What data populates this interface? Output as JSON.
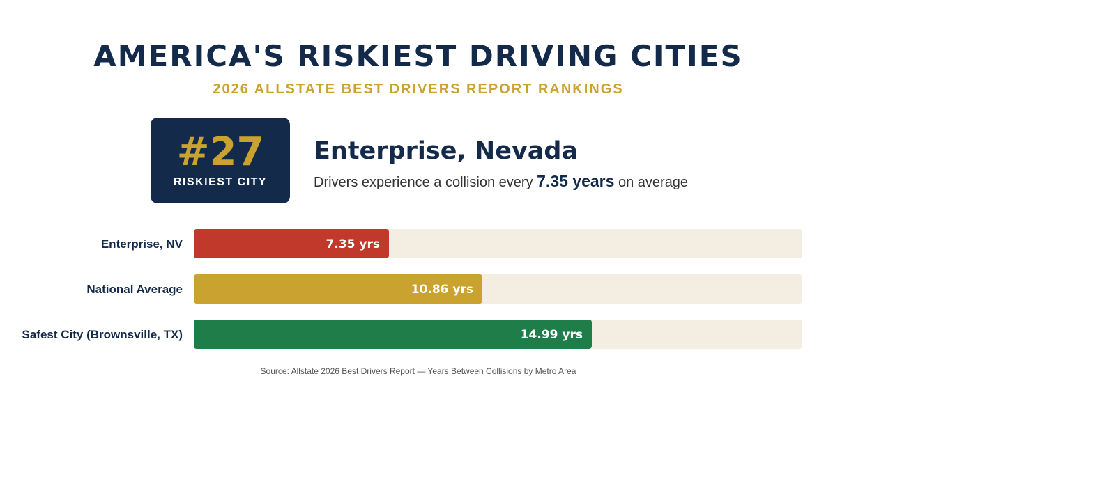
{
  "header": {
    "title": "AMERICA'S RISKIEST DRIVING CITIES",
    "subtitle": "2026 ALLSTATE BEST DRIVERS REPORT RANKINGS"
  },
  "rank_badge": {
    "number": "#27",
    "label": "RISKIEST CITY"
  },
  "city": {
    "name": "Enterprise, Nevada",
    "desc_prefix": "Drivers experience a collision every ",
    "desc_highlight": "7.35 years",
    "desc_suffix": " on average"
  },
  "colors": {
    "navy": "#132a4a",
    "gold": "#c9a230",
    "red": "#c0392b",
    "green": "#1f7d4a",
    "track": "#f3eee1"
  },
  "chart_data": {
    "type": "bar",
    "orientation": "horizontal",
    "categories": [
      "Enterprise, NV",
      "National Average",
      "Safest City (Brownsville, TX)"
    ],
    "values": [
      7.35,
      10.86,
      14.99
    ],
    "value_labels": [
      "7.35 yrs",
      "10.86 yrs",
      "14.99 yrs"
    ],
    "bar_colors": [
      "#c0392b",
      "#c9a230",
      "#1f7d4a"
    ],
    "title": "",
    "xlabel": "",
    "ylabel": "",
    "xlim": [
      0,
      22.9
    ],
    "grid": false,
    "legend": "none"
  },
  "source": "Source: Allstate 2026 Best Drivers Report — Years Between Collisions by Metro Area"
}
